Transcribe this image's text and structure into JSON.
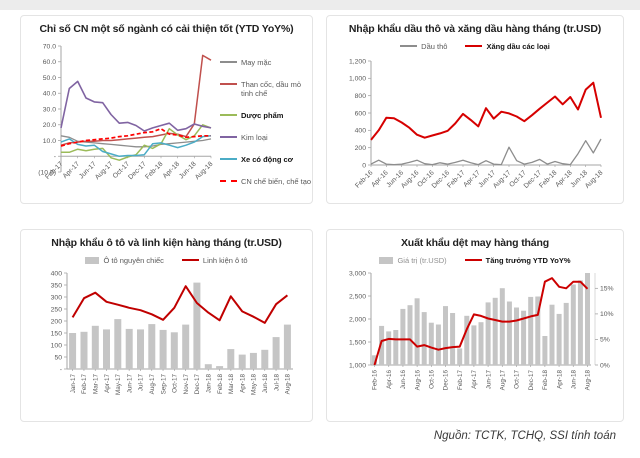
{
  "page": {
    "source_note": "Nguồn: TCTK, TCHQ, SSI tính toán"
  },
  "chart_data": [
    {
      "type": "line",
      "title": "Chỉ số CN một số ngành có cải thiện tốt (YTD YoY%)",
      "legend_position": "right",
      "ylim": [
        -10,
        70
      ],
      "y_tick_labels": [
        "70.0",
        "60.0",
        "50.0",
        "40.0",
        "30.0",
        "20.0",
        "10.0",
        "-",
        "(10.0)"
      ],
      "categories": [
        "Feb-17",
        "Mar-17",
        "Apr-17",
        "May-17",
        "Jun-17",
        "Jul-17",
        "Aug-17",
        "Sep-17",
        "Oct-17",
        "Nov-17",
        "Dec-17",
        "Jan-18",
        "Feb-18",
        "Mar-18",
        "Apr-18",
        "May-18",
        "Jun-18",
        "Jul-18",
        "Aug-18"
      ],
      "series": [
        {
          "name": "May mặc",
          "kind": "line",
          "color": "#8d8d8d",
          "values": [
            13,
            12,
            9.5,
            9,
            8.5,
            8,
            7.5,
            7,
            6.5,
            6,
            6,
            6.5,
            7.5,
            8,
            8.5,
            9,
            9.5,
            10,
            11
          ]
        },
        {
          "name": "Than cốc, dầu mỏ tinh chế",
          "kind": "line",
          "color": "#c0504d",
          "values": [
            7,
            8.5,
            9,
            9.5,
            9.5,
            10,
            10,
            10.5,
            11,
            11.5,
            12,
            12.5,
            13.5,
            14.5,
            14,
            12.5,
            20.5,
            64,
            61
          ]
        },
        {
          "name": "Dược phẩm",
          "kind": "line",
          "color": "#9bbb59",
          "values": [
            2.5,
            2.5,
            4.5,
            3.5,
            4.5,
            5,
            -1,
            -2.5,
            -0.5,
            1,
            7,
            5,
            8,
            17.5,
            13.5,
            10.5,
            13,
            20,
            18
          ]
        },
        {
          "name": "Kim loại",
          "kind": "line",
          "color": "#8064a2",
          "values": [
            18,
            43,
            47.5,
            37,
            34.5,
            34,
            26.5,
            21,
            21.5,
            19.5,
            16,
            18,
            19.5,
            21,
            16.5,
            17.5,
            20.5,
            19,
            18
          ]
        },
        {
          "name": "Xe có động cơ",
          "kind": "line",
          "color": "#4bacc6",
          "values": [
            9,
            11,
            7.5,
            6.5,
            7,
            3,
            1.5,
            0,
            0.5,
            0.5,
            1,
            8,
            8.5,
            7,
            5.5,
            7,
            9,
            12.5,
            13
          ]
        },
        {
          "name": "CN chế biến, chế tạo",
          "kind": "line",
          "color": "#ff0000",
          "dash": true,
          "values": [
            6.5,
            8,
            9,
            10,
            10.5,
            11,
            11.5,
            12.5,
            13,
            14,
            15,
            15.5,
            17.5,
            14,
            13.5,
            12,
            12.5,
            13,
            13
          ]
        }
      ]
    },
    {
      "type": "line",
      "title": "Nhập khẩu dầu thô và xăng dầu hàng tháng (tr.USD)",
      "legend_position": "top",
      "ylim": [
        0,
        1200
      ],
      "y_tick_labels": [
        "1,200",
        "1,000",
        "800",
        "600",
        "400",
        "200",
        "0"
      ],
      "categories": [
        "Feb-16",
        "Mar-16",
        "Apr-16",
        "May-16",
        "Jun-16",
        "Jul-16",
        "Aug-16",
        "Sep-16",
        "Oct-16",
        "Nov-16",
        "Dec-16",
        "Jan-17",
        "Feb-17",
        "Mar-17",
        "Apr-17",
        "May-17",
        "Jun-17",
        "Jul-17",
        "Aug-17",
        "Sep-17",
        "Oct-17",
        "Nov-17",
        "Dec-17",
        "Jan-18",
        "Feb-18",
        "Mar-18",
        "Apr-18",
        "May-18",
        "Jun-18",
        "Jul-18",
        "Aug-18"
      ],
      "series": [
        {
          "name": "Dầu thô",
          "kind": "line",
          "color": "#8d8d8d",
          "values": [
            10,
            55,
            10,
            5,
            10,
            30,
            55,
            15,
            5,
            25,
            10,
            30,
            55,
            25,
            5,
            50,
            10,
            5,
            205,
            50,
            10,
            30,
            65,
            10,
            40,
            15,
            5,
            130,
            280,
            140,
            300
          ]
        },
        {
          "name": "Xăng dầu các loại",
          "kind": "line",
          "color": "#d60000",
          "values": [
            290,
            400,
            545,
            540,
            490,
            430,
            350,
            315,
            340,
            365,
            395,
            480,
            590,
            520,
            445,
            655,
            535,
            615,
            595,
            560,
            505,
            575,
            650,
            720,
            790,
            700,
            785,
            640,
            870,
            950,
            545
          ]
        }
      ]
    },
    {
      "type": "bar-line",
      "title": "Nhập khẩu ô tô và linh kiện hàng tháng (tr.USD)",
      "legend_position": "top",
      "ylim": [
        0,
        400
      ],
      "y_tick_labels": [
        "400",
        "350",
        "300",
        "250",
        "200",
        "150",
        "100",
        "50",
        "-"
      ],
      "categories": [
        "Jan-17",
        "Feb-17",
        "Mar-17",
        "Apr-17",
        "May-17",
        "Jun-17",
        "Jul-17",
        "Aug-17",
        "Sep-17",
        "Oct-17",
        "Nov-17",
        "Dec-17",
        "Jan-18",
        "Feb-18",
        "Mar-18",
        "Apr-18",
        "May-18",
        "Jun-18",
        "Jul-18",
        "Aug-18"
      ],
      "series": [
        {
          "name": "Ô tô nguyên chiếc",
          "kind": "bar",
          "color": "#c5c5c5",
          "values": [
            150,
            155,
            180,
            165,
            208,
            167,
            165,
            187,
            163,
            153,
            185,
            360,
            20,
            12,
            83,
            60,
            67,
            80,
            133,
            185
          ]
        },
        {
          "name": "Linh kiện ô tô",
          "kind": "line",
          "color": "#c00000",
          "values": [
            215,
            295,
            318,
            280,
            268,
            255,
            245,
            228,
            205,
            255,
            345,
            275,
            235,
            203,
            303,
            240,
            218,
            192,
            270,
            307
          ]
        }
      ]
    },
    {
      "type": "bar-line",
      "title": "Xuất khẩu dệt may hàng tháng",
      "legend_position": "top",
      "ylim": [
        1000,
        3000
      ],
      "y_tick_labels": [
        "3,000",
        "2,500",
        "2,000",
        "1,500",
        "1,000"
      ],
      "ylim_right": [
        0,
        18
      ],
      "y_tick_labels_right": [
        "15%",
        "10%",
        "5%",
        "0%"
      ],
      "y_tick_values_right": [
        15,
        10,
        5,
        0
      ],
      "categories": [
        "Feb-16",
        "Mar-16",
        "Apr-16",
        "May-16",
        "Jun-16",
        "Jul-16",
        "Aug-16",
        "Sep-16",
        "Oct-16",
        "Nov-16",
        "Dec-16",
        "Jan-17",
        "Feb-17",
        "Mar-17",
        "Apr-17",
        "May-17",
        "Jun-17",
        "Jul-17",
        "Aug-17",
        "Sep-17",
        "Oct-17",
        "Nov-17",
        "Dec-17",
        "Jan-18",
        "Feb-18",
        "Mar-18",
        "Apr-18",
        "May-18",
        "Jun-18",
        "Jul-18",
        "Aug-18"
      ],
      "series": [
        {
          "name": "Giá trị (tr.USD)",
          "kind": "bar",
          "color": "#c5c5c5",
          "values": [
            1210,
            1850,
            1730,
            1760,
            2220,
            2300,
            2450,
            2150,
            1920,
            1880,
            2280,
            2130,
            1360,
            2070,
            1860,
            1930,
            2360,
            2460,
            2670,
            2380,
            2250,
            2180,
            2480,
            2490,
            1630,
            2310,
            2110,
            2350,
            2750,
            2840,
            3000
          ]
        },
        {
          "name": "Tăng trưởng YTD YoY%",
          "kind": "line",
          "color": "#cc0000",
          "axis": "right",
          "values": [
            0,
            4.7,
            5.1,
            5.0,
            5.0,
            5.0,
            3.6,
            3.9,
            3.4,
            3.0,
            3.3,
            3.5,
            3.6,
            7.0,
            9.9,
            9.6,
            9.1,
            8.8,
            8.5,
            8.5,
            8.7,
            9.1,
            9.5,
            9.8,
            16.3,
            17.0,
            15.3,
            15.0,
            16.3,
            16.3,
            14.9
          ]
        }
      ]
    }
  ]
}
